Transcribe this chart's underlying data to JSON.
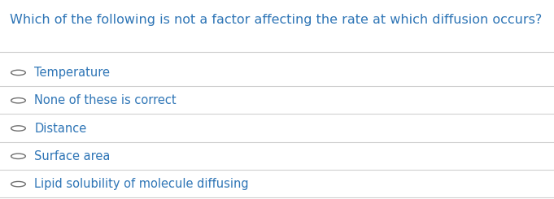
{
  "question": "Which of the following is not a factor affecting the rate at which diffusion occurs?",
  "question_color": "#2e75b6",
  "options": [
    "Temperature",
    "None of these is correct",
    "Distance",
    "Surface area",
    "Lipid solubility of molecule diffusing"
  ],
  "option_color": "#2e75b6",
  "background_color": "#ffffff",
  "line_color": "#d0d0d0",
  "circle_color": "#707070",
  "question_fontsize": 11.5,
  "option_fontsize": 10.5,
  "fig_width": 6.81,
  "fig_height": 2.45
}
